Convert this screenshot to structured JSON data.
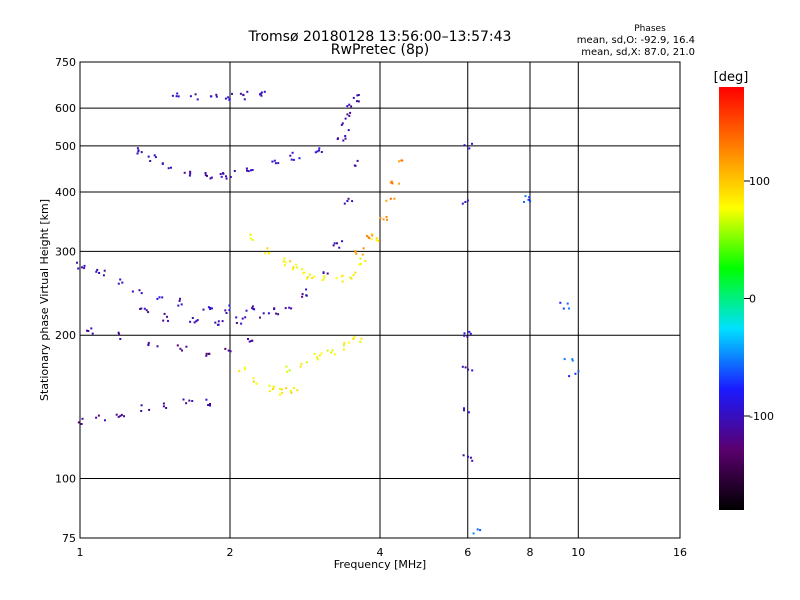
{
  "chart_data": {
    "type": "scatter",
    "title": "Tromsø 20180128 13:56:00–13:57:43",
    "subtitle": "RwPretec (8p)",
    "xlabel": "Frequency [MHz]",
    "ylabel": "Stationary phase Virtual Height [km]",
    "x_scale": "log",
    "y_scale": "log",
    "xlim": [
      1,
      16
    ],
    "ylim": [
      75,
      750
    ],
    "x_ticks": [
      1,
      2,
      4,
      6,
      8,
      10,
      16
    ],
    "y_ticks": [
      75,
      100,
      200,
      300,
      400,
      500,
      600,
      750
    ],
    "grid": true,
    "info_block": {
      "title": "Phases",
      "line1": "mean, sd,O: -92.9, 16.4",
      "line2": "mean, sd,X:  87.0, 21.0"
    },
    "colorbar": {
      "unit": "[deg]",
      "range": [
        -180,
        180
      ],
      "ticks": [
        100,
        0,
        -100
      ],
      "colors": [
        "#000000",
        "#5a006e",
        "#1a1aff",
        "#00e0ff",
        "#00ff00",
        "#ffff00",
        "#ff8000",
        "#ff0000"
      ]
    },
    "traces": [
      {
        "x": [
          1.55,
          1.7,
          1.85,
          2.0,
          2.15,
          2.3
        ],
        "y": [
          640,
          635,
          632,
          633,
          637,
          642
        ],
        "phase": -100
      },
      {
        "x": [
          1.3,
          1.4,
          1.5,
          1.65,
          1.8,
          1.95
        ],
        "y": [
          485,
          470,
          455,
          440,
          432,
          430
        ],
        "phase": -105
      },
      {
        "x": [
          2.0,
          2.2,
          2.45,
          2.7,
          3.0
        ],
        "y": [
          438,
          448,
          462,
          475,
          490
        ],
        "phase": -95
      },
      {
        "x": [
          1.0,
          1.1,
          1.2,
          1.3,
          1.45,
          1.6,
          1.8,
          2.0,
          2.2,
          2.5
        ],
        "y": [
          280,
          270,
          258,
          248,
          240,
          234,
          229,
          227,
          226,
          225
        ],
        "phase": -100
      },
      {
        "x": [
          1.35,
          1.5,
          1.7,
          1.9,
          2.1,
          2.35,
          2.6,
          2.85,
          3.1,
          3.3,
          3.45,
          3.55
        ],
        "y": [
          225,
          218,
          214,
          213,
          215,
          220,
          230,
          245,
          270,
          310,
          380,
          460
        ],
        "phase": -105
      },
      {
        "x": [
          3.35,
          3.4,
          3.45,
          3.5,
          3.55
        ],
        "y": [
          520,
          550,
          580,
          610,
          630
        ],
        "phase": -110
      },
      {
        "x": [
          2.7,
          2.9,
          3.1,
          3.3,
          3.5,
          3.7,
          3.9
        ],
        "y": [
          280,
          268,
          262,
          262,
          268,
          285,
          320
        ],
        "phase": 80
      },
      {
        "x": [
          3.65,
          3.85,
          4.05,
          4.2,
          4.3,
          4.4
        ],
        "y": [
          300,
          320,
          350,
          380,
          420,
          470
        ],
        "phase": 125
      },
      {
        "x": [
          2.25,
          2.4,
          2.6,
          2.8
        ],
        "y": [
          320,
          300,
          285,
          275
        ],
        "phase": 85
      },
      {
        "x": [
          1.0,
          1.1,
          1.2,
          1.35,
          1.5,
          1.65,
          1.8
        ],
        "y": [
          132,
          134,
          137,
          140,
          142,
          144,
          145
        ],
        "phase": -110
      },
      {
        "x": [
          1.05,
          1.2,
          1.4,
          1.6,
          1.8,
          2.0,
          2.2
        ],
        "y": [
          205,
          200,
          193,
          187,
          184,
          188,
          195
        ],
        "phase": -115
      },
      {
        "x": [
          2.1,
          2.25,
          2.4,
          2.55,
          2.7
        ],
        "y": [
          170,
          160,
          155,
          152,
          152
        ],
        "phase": 85
      },
      {
        "x": [
          2.6,
          2.8,
          3.0,
          3.2,
          3.4,
          3.6
        ],
        "y": [
          170,
          175,
          180,
          185,
          190,
          195
        ],
        "phase": 75
      },
      {
        "x": [
          6.0,
          6.0,
          6.0,
          6.0,
          6.0,
          6.0
        ],
        "y": [
          110,
          140,
          170,
          200,
          380,
          500
        ],
        "phase": -100
      },
      {
        "x": [
          7.85,
          9.4,
          9.6,
          9.8,
          6.3
        ],
        "y": [
          385,
          230,
          175,
          165,
          78
        ],
        "phase": -60
      }
    ]
  }
}
